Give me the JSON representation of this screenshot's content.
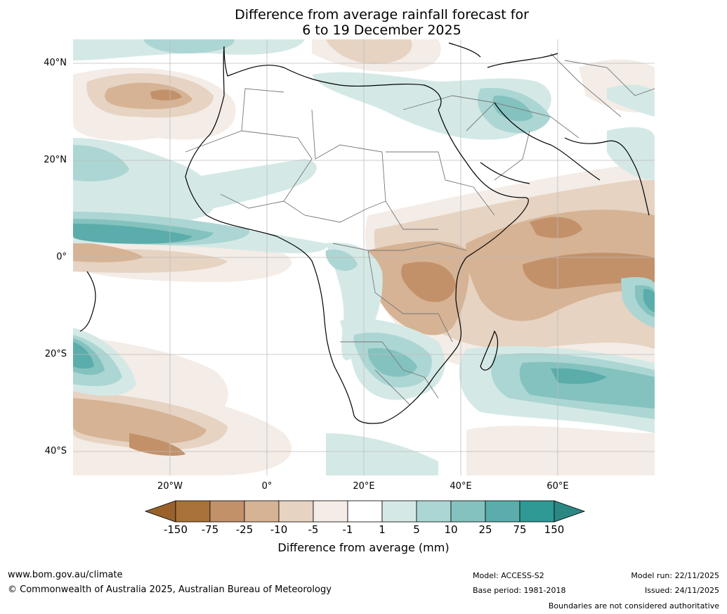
{
  "title": {
    "line1": "Difference from average rainfall forecast for",
    "line2": "6 to 19 December 2025"
  },
  "map": {
    "lat_labels": [
      "40°N",
      "20°N",
      "0°",
      "20°S",
      "40°S"
    ],
    "lon_labels": [
      "20°W",
      "0°",
      "20°E",
      "40°E",
      "60°E"
    ]
  },
  "colorbar": {
    "title": "Difference from average (mm)",
    "ticks": [
      "-150",
      "-75",
      "-25",
      "-10",
      "-5",
      "-1",
      "1",
      "5",
      "10",
      "25",
      "75",
      "150"
    ],
    "colors": [
      "#a8723a",
      "#c2916a",
      "#d6b394",
      "#e6d3c2",
      "#f4ece6",
      "#ffffff",
      "#d4e9e6",
      "#acd6d3",
      "#84c2bf",
      "#5aadaa",
      "#2f9995"
    ],
    "under_color": "#99622b",
    "over_color": "#2a8783"
  },
  "footer": {
    "website": "www.bom.gov.au/climate",
    "copyright": "© Commonwealth of Australia 2025, Australian Bureau of Meteorology",
    "model": "Model: ACCESS-S2",
    "base_period": "Base period: 1981-2018",
    "model_run": "Model run: 22/11/2025",
    "issued": "Issued: 24/11/2025",
    "disclaimer": "Boundaries are not considered authoritative"
  }
}
